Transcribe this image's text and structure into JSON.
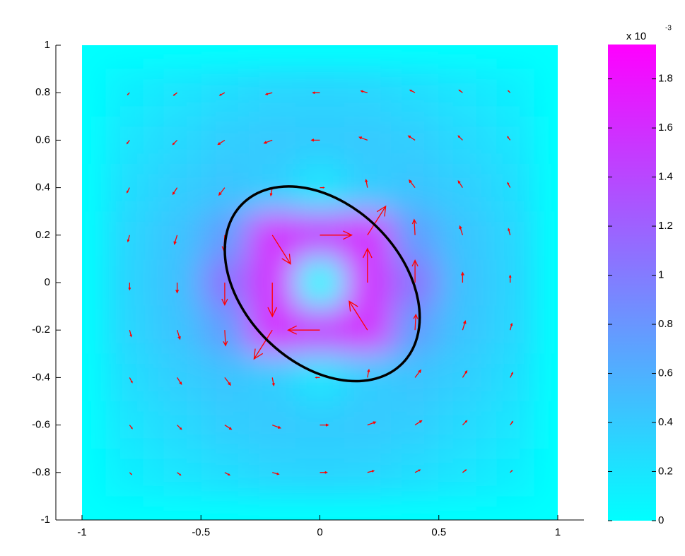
{
  "chart_data": {
    "type": "quiver",
    "x": [
      -0.8,
      -0.6,
      -0.4,
      -0.2,
      0,
      0.2,
      0.4,
      0.6,
      0.8
    ],
    "y": [
      0.8,
      0.6,
      0.4,
      0.2,
      0,
      -0.2,
      -0.4,
      -0.6,
      -0.8
    ],
    "u": [
      [
        -0.09,
        -0.16,
        -0.23,
        -0.3,
        -0.33,
        -0.3,
        -0.23,
        -0.16,
        -0.09
      ],
      [
        -0.12,
        -0.2,
        -0.31,
        -0.38,
        -0.39,
        -0.38,
        -0.31,
        -0.2,
        -0.12
      ],
      [
        -0.12,
        -0.2,
        -0.27,
        -0.07,
        0.19,
        -0.07,
        -0.27,
        -0.2,
        -0.12
      ],
      [
        -0.08,
        -0.13,
        -0.04,
        0.86,
        1.5,
        0.86,
        -0.04,
        -0.13,
        -0.08
      ],
      [
        0,
        0,
        0,
        0,
        0,
        0,
        0,
        0,
        0
      ],
      [
        0.08,
        0.13,
        0.04,
        -0.86,
        -1.5,
        -0.86,
        0.04,
        0.13,
        0.08
      ],
      [
        0.12,
        0.2,
        0.27,
        0.07,
        -0.19,
        0.07,
        0.27,
        0.2,
        0.12
      ],
      [
        0.12,
        0.2,
        0.31,
        0.38,
        0.39,
        0.38,
        0.31,
        0.2,
        0.12
      ],
      [
        0.09,
        0.16,
        0.23,
        0.3,
        0.33,
        0.3,
        0.23,
        0.16,
        0.09
      ]
    ],
    "v": [
      [
        -0.09,
        -0.12,
        -0.12,
        -0.08,
        0,
        0.08,
        0.12,
        0.12,
        0.09
      ],
      [
        -0.16,
        -0.2,
        -0.2,
        -0.14,
        0,
        0.14,
        0.2,
        0.2,
        0.16
      ],
      [
        -0.23,
        -0.31,
        -0.35,
        -0.37,
        0,
        0.37,
        0.35,
        0.31,
        0.23
      ],
      [
        -0.3,
        -0.42,
        -0.73,
        -1.36,
        0,
        1.36,
        0.73,
        0.42,
        0.3
      ],
      [
        -0.33,
        -0.47,
        -1.05,
        -1.6,
        0,
        1.6,
        1.05,
        0.47,
        0.33
      ],
      [
        -0.3,
        -0.42,
        -0.73,
        -1.36,
        0,
        1.36,
        0.73,
        0.42,
        0.3
      ],
      [
        -0.23,
        -0.31,
        -0.35,
        -0.37,
        0,
        0.37,
        0.35,
        0.31,
        0.23
      ],
      [
        -0.16,
        -0.2,
        -0.2,
        -0.14,
        0,
        0.14,
        0.2,
        0.2,
        0.16
      ],
      [
        -0.09,
        -0.12,
        -0.12,
        -0.08,
        0,
        0.08,
        0.12,
        0.12,
        0.09
      ]
    ],
    "color": "#ff0000",
    "xlim": [
      -1.11,
      1.11
    ],
    "ylim": [
      -1,
      1
    ],
    "field_xlim": [
      -1,
      1
    ],
    "xticks": [
      -1,
      -0.5,
      0,
      0.5,
      1
    ],
    "yticks": [
      -1,
      -0.8,
      -0.6,
      -0.4,
      -0.2,
      0,
      0.2,
      0.4,
      0.6,
      0.8,
      1
    ],
    "ellipse": {
      "center": [
        0.01,
        -0.005
      ],
      "semi_axes": [
        0.475,
        0.332
      ],
      "angle": -45,
      "color": "#000000"
    },
    "colormap": [
      "#00ffff",
      "#ff00ff"
    ],
    "clim": [
      0,
      1.94
    ],
    "cticks": [
      0,
      0.2,
      0.4,
      0.6,
      0.8,
      1,
      1.2,
      1.4,
      1.6,
      1.8
    ],
    "colorbar_scale": {
      "base": "x 10",
      "exponent": "-3"
    }
  }
}
